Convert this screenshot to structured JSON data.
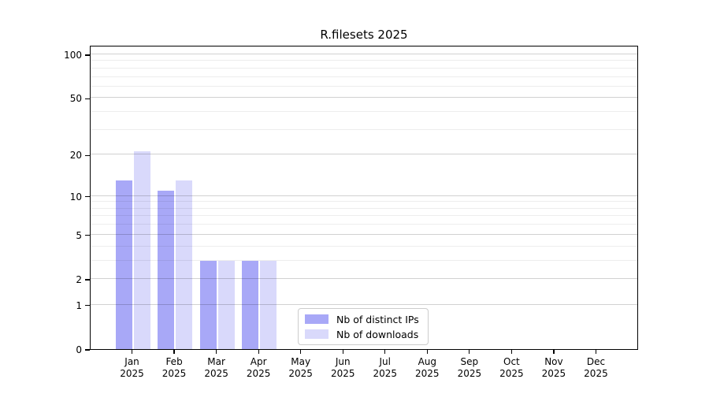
{
  "figure": {
    "title": "R.filesets 2025",
    "background": "#ffffff"
  },
  "chart_data": {
    "type": "bar",
    "title": "R.filesets 2025",
    "categories": [
      "Jan",
      "Feb",
      "Mar",
      "Apr",
      "May",
      "Jun",
      "Jul",
      "Aug",
      "Sep",
      "Oct",
      "Nov",
      "Dec"
    ],
    "category_year": "2025",
    "series": [
      {
        "name": "Nb of distinct IPs",
        "color": "#a8a8f7",
        "values": [
          13,
          11,
          3,
          3,
          0,
          0,
          0,
          0,
          0,
          0,
          0,
          0
        ]
      },
      {
        "name": "Nb of downloads",
        "color": "#d9d9fb",
        "values": [
          21,
          13,
          3,
          3,
          0,
          0,
          0,
          0,
          0,
          0,
          0,
          0
        ]
      }
    ],
    "xlabel": "",
    "ylabel": "",
    "yscale": "log1p",
    "ylim": [
      0,
      116
    ],
    "yticks": [
      0,
      1,
      2,
      5,
      10,
      20,
      50,
      100
    ],
    "yticks_minor": [
      3,
      4,
      6,
      7,
      8,
      9,
      30,
      40,
      60,
      70,
      80,
      90
    ],
    "grid": "horizontal, drawn over bars",
    "legend_position": "lower center, inside axes"
  }
}
